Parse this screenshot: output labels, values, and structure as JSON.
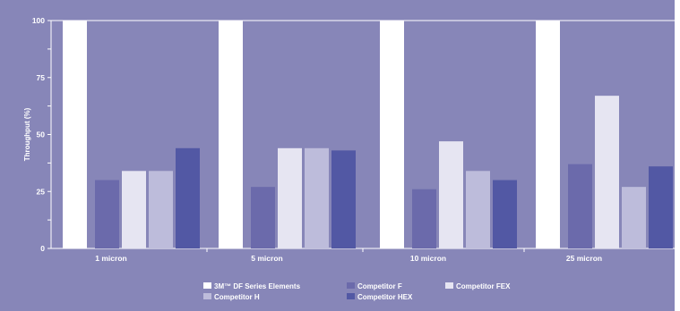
{
  "chart_data": {
    "type": "bar",
    "title": "",
    "xlabel": "",
    "ylabel": "Throughput (%)",
    "ylim": [
      0,
      100
    ],
    "yticks": [
      0,
      25,
      50,
      75,
      100
    ],
    "categories": [
      "1 micron",
      "5 micron",
      "10 micron",
      "25 micron"
    ],
    "series": [
      {
        "name": "3M™ DF Series Elements",
        "color": "#ffffff",
        "values": [
          100,
          100,
          100,
          100
        ]
      },
      {
        "name": "Competitor F",
        "color": "#6b6aab",
        "values": [
          30,
          27,
          26,
          37
        ]
      },
      {
        "name": "Competitor FEX",
        "color": "#e6e5f2",
        "values": [
          34,
          44,
          47,
          67
        ]
      },
      {
        "name": "Competitor H",
        "color": "#bdbcdb",
        "values": [
          34,
          44,
          34,
          27
        ]
      },
      {
        "name": "Competitor HEX",
        "color": "#5258a4",
        "values": [
          44,
          43,
          30,
          36
        ]
      }
    ],
    "legend_position": "bottom",
    "grid": false,
    "colors": {
      "background": "#8786b8",
      "axis": "#ffffff",
      "text": "#ffffff"
    }
  }
}
